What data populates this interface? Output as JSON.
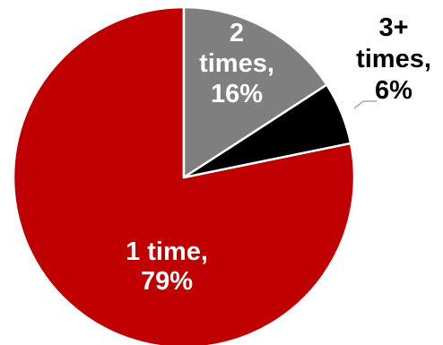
{
  "chart_data": {
    "type": "pie",
    "title": "",
    "slices": [
      {
        "label_lines": [
          "1 time,",
          "79%"
        ],
        "value": 79,
        "color": "#c00000",
        "label_color": "#ffffff",
        "label_position": "inside"
      },
      {
        "label_lines": [
          "2",
          "times,",
          "16%"
        ],
        "value": 16,
        "color": "#7f7f7f",
        "label_color": "#ffffff",
        "label_position": "inside"
      },
      {
        "label_lines": [
          "3+",
          "times,",
          "6%"
        ],
        "value": 6,
        "color": "#000000",
        "label_color": "#000000",
        "label_position": "outside"
      }
    ]
  }
}
